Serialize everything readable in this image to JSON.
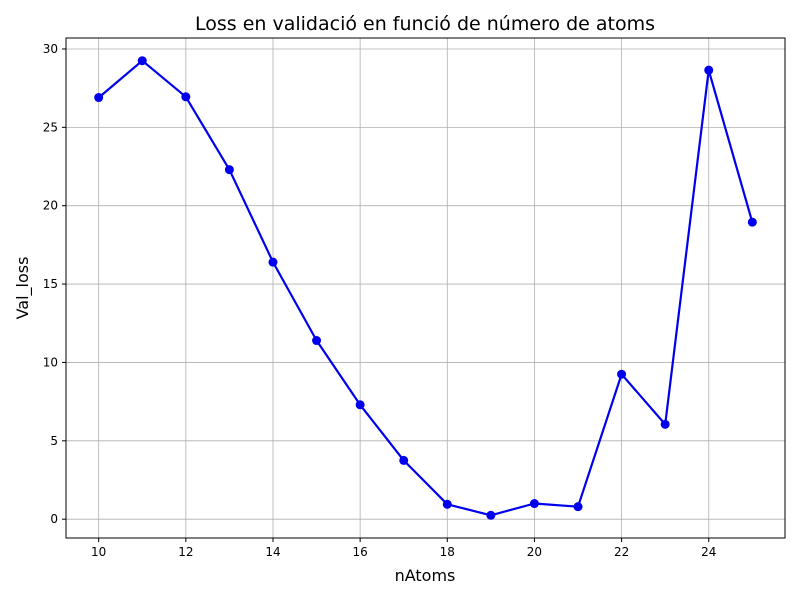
{
  "chart_data": {
    "type": "line",
    "title": "Loss en validació en funció de número de atoms",
    "xlabel": "nAtoms",
    "ylabel": "Val_loss",
    "x": [
      10,
      11,
      12,
      13,
      14,
      15,
      16,
      17,
      18,
      19,
      20,
      21,
      22,
      23,
      24,
      25
    ],
    "series": [
      {
        "values": [
          26.9,
          29.25,
          26.95,
          22.3,
          16.4,
          11.4,
          7.3,
          3.75,
          0.95,
          0.25,
          1.0,
          0.8,
          9.25,
          6.05,
          28.65,
          18.95
        ],
        "color": "#0000ee",
        "marker": "circle"
      }
    ],
    "xlim": [
      9.25,
      25.75
    ],
    "ylim": [
      -1.2,
      30.7
    ],
    "xticks": [
      "10",
      "12",
      "14",
      "16",
      "18",
      "20",
      "22",
      "24"
    ],
    "yticks": [
      "0",
      "5",
      "10",
      "15",
      "20",
      "25",
      "30"
    ],
    "grid": true
  }
}
